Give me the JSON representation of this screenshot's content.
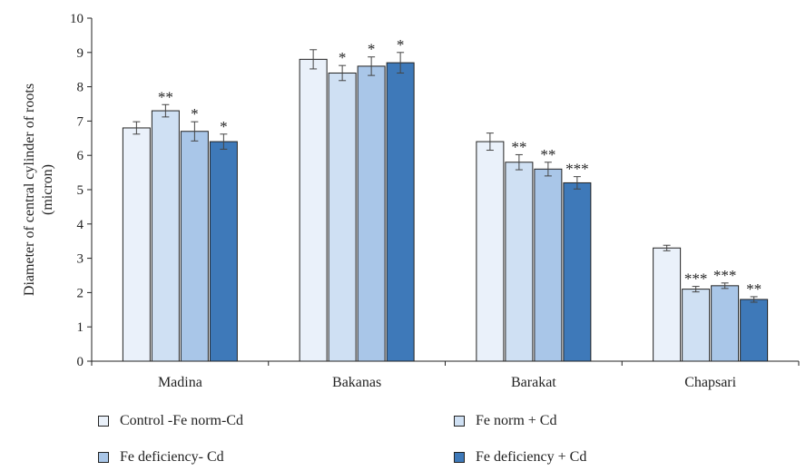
{
  "chart_data": {
    "type": "bar",
    "title": "",
    "xlabel": "",
    "ylabel_lines": [
      "Diameter of central cylinder of roots",
      "(micron)"
    ],
    "ylim": [
      0,
      10
    ],
    "yticks": [
      0,
      1,
      2,
      3,
      4,
      5,
      6,
      7,
      8,
      9,
      10
    ],
    "grid": false,
    "legend_position": "bottom",
    "categories": [
      "Madina",
      "Bakanas",
      "Barakat",
      "Chapsari"
    ],
    "series": [
      {
        "name": "Control -Fe norm-Cd",
        "color": "#eaf1fa",
        "values": [
          6.8,
          8.8,
          6.4,
          3.3
        ],
        "errors": [
          0.18,
          0.28,
          0.25,
          0.08
        ],
        "significance": [
          "",
          "",
          "",
          ""
        ]
      },
      {
        "name": "Fe norm + Cd",
        "color": "#cfe0f3",
        "values": [
          7.3,
          8.4,
          5.8,
          2.1
        ],
        "errors": [
          0.18,
          0.22,
          0.22,
          0.08
        ],
        "significance": [
          "**",
          "*",
          "**",
          "***"
        ]
      },
      {
        "name": "Fe deficiency- Cd",
        "color": "#a9c6e8",
        "values": [
          6.7,
          8.6,
          5.6,
          2.2
        ],
        "errors": [
          0.28,
          0.27,
          0.2,
          0.08
        ],
        "significance": [
          "*",
          "*",
          "**",
          "***"
        ]
      },
      {
        "name": "Fe deficiency + Cd",
        "color": "#3e79b9",
        "values": [
          6.4,
          8.7,
          5.2,
          1.8
        ],
        "errors": [
          0.22,
          0.3,
          0.18,
          0.08
        ],
        "significance": [
          "*",
          "*",
          "***",
          "**"
        ]
      }
    ]
  }
}
